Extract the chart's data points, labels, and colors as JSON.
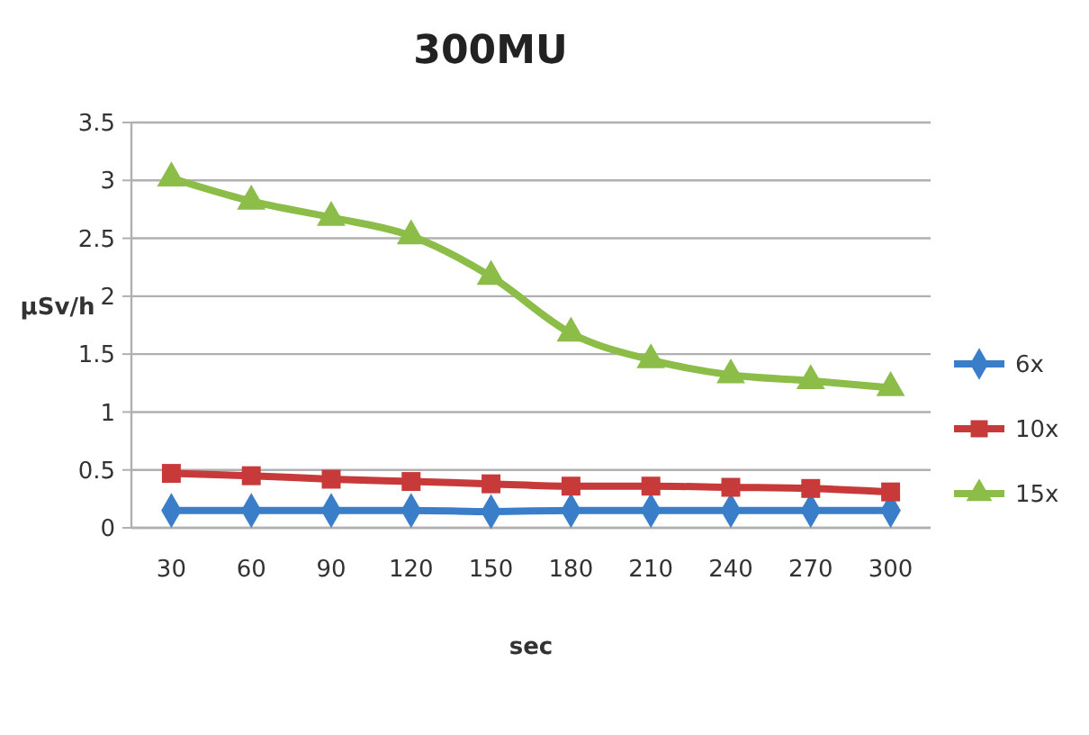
{
  "chart_data": {
    "type": "line",
    "title": "300MU",
    "xlabel": "sec",
    "ylabel": "μSv/h",
    "categories": [
      "30",
      "60",
      "90",
      "120",
      "150",
      "180",
      "210",
      "240",
      "270",
      "300"
    ],
    "series": [
      {
        "name": "6x",
        "color": "#3a7dc9",
        "marker": "diamond",
        "values": [
          0.15,
          0.15,
          0.15,
          0.15,
          0.14,
          0.15,
          0.15,
          0.15,
          0.15,
          0.15
        ]
      },
      {
        "name": "10x",
        "color": "#c8393a",
        "marker": "square",
        "values": [
          0.47,
          0.45,
          0.42,
          0.4,
          0.38,
          0.36,
          0.36,
          0.35,
          0.34,
          0.31
        ]
      },
      {
        "name": "15x",
        "color": "#8cbd48",
        "marker": "triangle",
        "values": [
          3.02,
          2.82,
          2.68,
          2.52,
          2.17,
          1.68,
          1.45,
          1.32,
          1.27,
          1.21
        ]
      }
    ],
    "ylim": [
      0,
      3.5
    ],
    "yticks": [
      0,
      0.5,
      1,
      1.5,
      2,
      2.5,
      3,
      3.5
    ],
    "grid": "y",
    "legend": "right"
  }
}
